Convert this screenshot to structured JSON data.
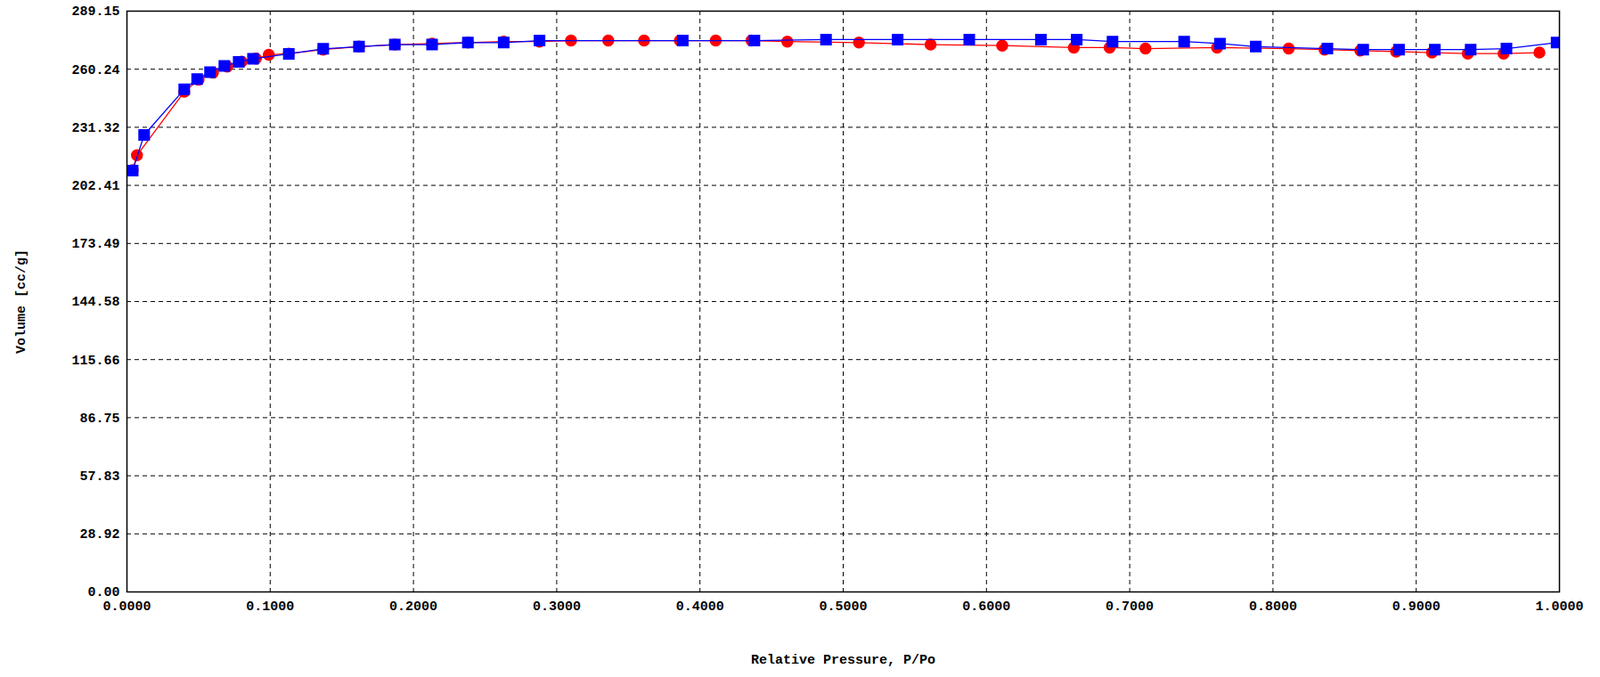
{
  "chart_data": {
    "type": "line",
    "x_label": "Relative Pressure, P/Po",
    "y_label": "Volume [cc/g]",
    "xlim": [
      0,
      1
    ],
    "ylim": [
      0,
      289.15
    ],
    "xticks": [
      {
        "value": 0,
        "label": "0.0000"
      },
      {
        "value": 0.1,
        "label": "0.1000"
      },
      {
        "value": 0.2,
        "label": "0.2000"
      },
      {
        "value": 0.3,
        "label": "0.3000"
      },
      {
        "value": 0.4,
        "label": "0.4000"
      },
      {
        "value": 0.5,
        "label": "0.5000"
      },
      {
        "value": 0.6,
        "label": "0.6000"
      },
      {
        "value": 0.7,
        "label": "0.7000"
      },
      {
        "value": 0.8,
        "label": "0.8000"
      },
      {
        "value": 0.9,
        "label": "0.9000"
      },
      {
        "value": 1,
        "label": "1.0000"
      }
    ],
    "yticks": [
      {
        "value": 0,
        "label": "0.00"
      },
      28.92,
      57.83,
      86.75,
      115.66,
      144.58,
      173.49,
      202.41,
      231.32,
      260.24,
      289.15
    ],
    "grid": true,
    "series": [
      {
        "color": "#ff0000",
        "marker": "circle",
        "line_style": "solid",
        "x": [
          0.004,
          0.007,
          0.04,
          0.05,
          0.06,
          0.07,
          0.08,
          0.09,
          0.099,
          0.113,
          0.137,
          0.162,
          0.187,
          0.213,
          0.238,
          0.263,
          0.288,
          0.31,
          0.336,
          0.361,
          0.386,
          0.411,
          0.436,
          0.461,
          0.511,
          0.561,
          0.611,
          0.661,
          0.686,
          0.711,
          0.761,
          0.811,
          0.836,
          0.861,
          0.886,
          0.911,
          0.936,
          0.961,
          0.986
        ],
        "values": [
          210,
          217.4,
          249,
          255,
          258.5,
          261.5,
          264,
          265.5,
          267.4,
          268,
          270,
          271.5,
          272.5,
          273,
          273.5,
          274,
          274,
          274.5,
          274.5,
          274.5,
          274.5,
          274.5,
          274.5,
          274,
          273.5,
          272.5,
          272,
          271,
          271,
          270.5,
          271,
          270.5,
          270,
          269.5,
          269,
          268.5,
          268,
          268,
          268.5
        ]
      },
      {
        "color": "#0000ff",
        "marker": "square",
        "line_style": "solid",
        "x": [
          0.004,
          0.012,
          0.04,
          0.049,
          0.058,
          0.068,
          0.078,
          0.088,
          0.113,
          0.137,
          0.162,
          0.187,
          0.213,
          0.238,
          0.263,
          0.288,
          0.388,
          0.438,
          0.488,
          0.538,
          0.588,
          0.638,
          0.663,
          0.688,
          0.738,
          0.763,
          0.788,
          0.838,
          0.863,
          0.888,
          0.913,
          0.938,
          0.963,
          0.998
        ],
        "values": [
          209.8,
          227.5,
          250.2,
          255.3,
          258.8,
          261.9,
          263.9,
          265.4,
          267.9,
          270.4,
          271.5,
          272.5,
          272.5,
          273.5,
          273.5,
          274.5,
          274.5,
          274.5,
          275,
          275,
          275,
          275,
          275,
          274,
          274,
          273,
          271.5,
          270.5,
          270,
          270,
          270,
          270,
          270.5,
          273.5
        ]
      }
    ]
  }
}
